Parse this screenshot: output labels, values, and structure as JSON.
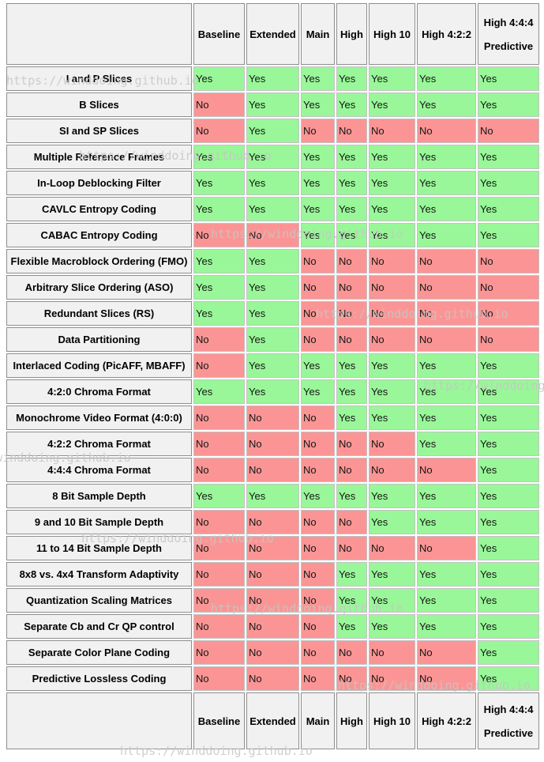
{
  "watermark": {
    "text": "https://winddoing.github.io"
  },
  "colors": {
    "yes_cell": "#99f799",
    "no_cell": "#fb9595",
    "header_bg": "#f1f1f1",
    "page_bg": "#ffffff"
  },
  "table": {
    "yes_value": "Yes",
    "no_value": "No",
    "columns": [
      {
        "id": "baseline",
        "lines": [
          "Baseline"
        ]
      },
      {
        "id": "extended",
        "lines": [
          "Extended"
        ]
      },
      {
        "id": "main",
        "lines": [
          "Main"
        ]
      },
      {
        "id": "high",
        "lines": [
          "High"
        ]
      },
      {
        "id": "high-10",
        "lines": [
          "High 10"
        ]
      },
      {
        "id": "high-4-2-2",
        "lines": [
          "High 4:2:2"
        ]
      },
      {
        "id": "high-4-4-4-predictive",
        "lines": [
          "High 4:4:4",
          "Predictive"
        ]
      }
    ],
    "rows": [
      {
        "label": "I and P Slices",
        "values": [
          "Yes",
          "Yes",
          "Yes",
          "Yes",
          "Yes",
          "Yes",
          "Yes"
        ]
      },
      {
        "label": "B Slices",
        "values": [
          "No",
          "Yes",
          "Yes",
          "Yes",
          "Yes",
          "Yes",
          "Yes"
        ]
      },
      {
        "label": "SI and SP Slices",
        "values": [
          "No",
          "Yes",
          "No",
          "No",
          "No",
          "No",
          "No"
        ]
      },
      {
        "label": "Multiple Reference Frames",
        "values": [
          "Yes",
          "Yes",
          "Yes",
          "Yes",
          "Yes",
          "Yes",
          "Yes"
        ]
      },
      {
        "label": "In-Loop Deblocking Filter",
        "values": [
          "Yes",
          "Yes",
          "Yes",
          "Yes",
          "Yes",
          "Yes",
          "Yes"
        ]
      },
      {
        "label": "CAVLC Entropy Coding",
        "values": [
          "Yes",
          "Yes",
          "Yes",
          "Yes",
          "Yes",
          "Yes",
          "Yes"
        ]
      },
      {
        "label": "CABAC Entropy Coding",
        "values": [
          "No",
          "No",
          "Yes",
          "Yes",
          "Yes",
          "Yes",
          "Yes"
        ]
      },
      {
        "label": "Flexible Macroblock Ordering (FMO)",
        "values": [
          "Yes",
          "Yes",
          "No",
          "No",
          "No",
          "No",
          "No"
        ]
      },
      {
        "label": "Arbitrary Slice Ordering (ASO)",
        "values": [
          "Yes",
          "Yes",
          "No",
          "No",
          "No",
          "No",
          "No"
        ]
      },
      {
        "label": "Redundant Slices (RS)",
        "values": [
          "Yes",
          "Yes",
          "No",
          "No",
          "No",
          "No",
          "No"
        ]
      },
      {
        "label": "Data Partitioning",
        "values": [
          "No",
          "Yes",
          "No",
          "No",
          "No",
          "No",
          "No"
        ]
      },
      {
        "label": "Interlaced Coding (PicAFF, MBAFF)",
        "values": [
          "No",
          "Yes",
          "Yes",
          "Yes",
          "Yes",
          "Yes",
          "Yes"
        ]
      },
      {
        "label": "4:2:0 Chroma Format",
        "values": [
          "Yes",
          "Yes",
          "Yes",
          "Yes",
          "Yes",
          "Yes",
          "Yes"
        ]
      },
      {
        "label": "Monochrome Video Format (4:0:0)",
        "values": [
          "No",
          "No",
          "No",
          "Yes",
          "Yes",
          "Yes",
          "Yes"
        ]
      },
      {
        "label": "4:2:2 Chroma Format",
        "values": [
          "No",
          "No",
          "No",
          "No",
          "No",
          "Yes",
          "Yes"
        ]
      },
      {
        "label": "4:4:4 Chroma Format",
        "values": [
          "No",
          "No",
          "No",
          "No",
          "No",
          "No",
          "Yes"
        ]
      },
      {
        "label": "8 Bit Sample Depth",
        "values": [
          "Yes",
          "Yes",
          "Yes",
          "Yes",
          "Yes",
          "Yes",
          "Yes"
        ]
      },
      {
        "label": "9 and 10 Bit Sample Depth",
        "values": [
          "No",
          "No",
          "No",
          "No",
          "Yes",
          "Yes",
          "Yes"
        ]
      },
      {
        "label": "11 to 14 Bit Sample Depth",
        "values": [
          "No",
          "No",
          "No",
          "No",
          "No",
          "No",
          "Yes"
        ]
      },
      {
        "label": "8x8 vs. 4x4 Transform Adaptivity",
        "values": [
          "No",
          "No",
          "No",
          "Yes",
          "Yes",
          "Yes",
          "Yes"
        ]
      },
      {
        "label": "Quantization Scaling Matrices",
        "values": [
          "No",
          "No",
          "No",
          "Yes",
          "Yes",
          "Yes",
          "Yes"
        ]
      },
      {
        "label": "Separate Cb and Cr QP control",
        "values": [
          "No",
          "No",
          "No",
          "Yes",
          "Yes",
          "Yes",
          "Yes"
        ]
      },
      {
        "label": "Separate Color Plane Coding",
        "values": [
          "No",
          "No",
          "No",
          "No",
          "No",
          "No",
          "Yes"
        ]
      },
      {
        "label": "Predictive Lossless Coding",
        "values": [
          "No",
          "No",
          "No",
          "No",
          "No",
          "No",
          "Yes"
        ]
      }
    ]
  }
}
